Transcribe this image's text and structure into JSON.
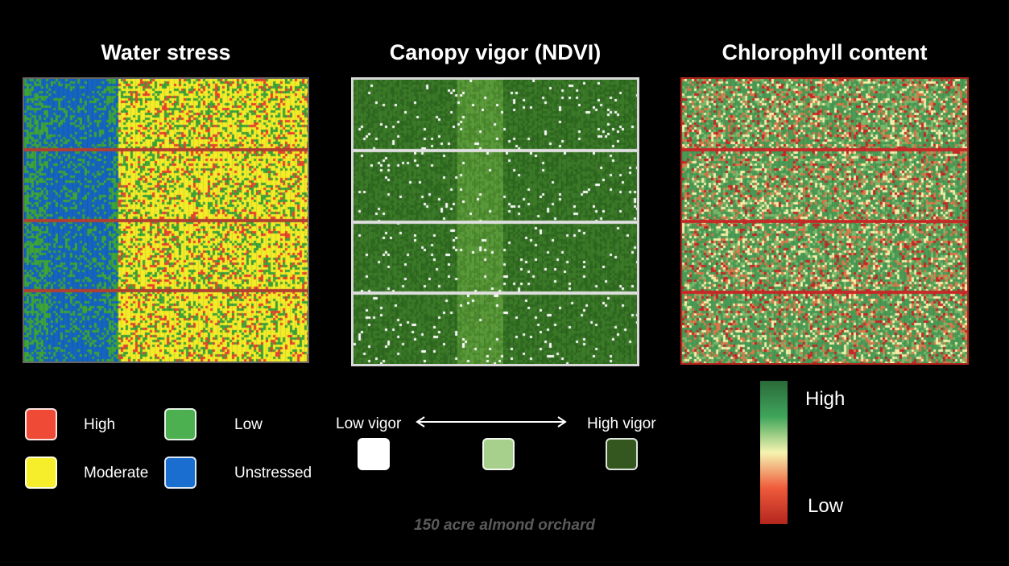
{
  "panels": [
    {
      "title": "Water stress",
      "colors": {
        "high": "#e8442f",
        "moderate": "#f4ec28",
        "low": "#3ea33a",
        "unstressed": "#1565c0"
      }
    },
    {
      "title": "Canopy vigor (NDVI)",
      "colors": {
        "low": "#ffffff",
        "mid": "#a9cf8a",
        "high": "#2f5a1d"
      }
    },
    {
      "title": "Chlorophyll content",
      "colors": {
        "high": "#2e7d45",
        "mid": "#f5f0a8",
        "low": "#c62828"
      }
    }
  ],
  "water_legend": [
    {
      "label": "High",
      "color": "#ee4a36"
    },
    {
      "label": "Moderate",
      "color": "#f6ee2a"
    },
    {
      "label": "Low",
      "color": "#4caf50"
    },
    {
      "label": "Unstressed",
      "color": "#1a6ecf"
    }
  ],
  "vigor_legend": {
    "low_label": "Low vigor",
    "high_label": "High vigor",
    "swatches": [
      "#ffffff",
      "#a8d08d",
      "#33571f"
    ]
  },
  "chlorophyll_legend": {
    "high_label": "High",
    "low_label": "Low",
    "gradient": [
      "#2a6a3a",
      "#3fa55a",
      "#f6f4b0",
      "#ef5a3a",
      "#b3261e"
    ]
  },
  "caption": "150 acre almond orchard"
}
